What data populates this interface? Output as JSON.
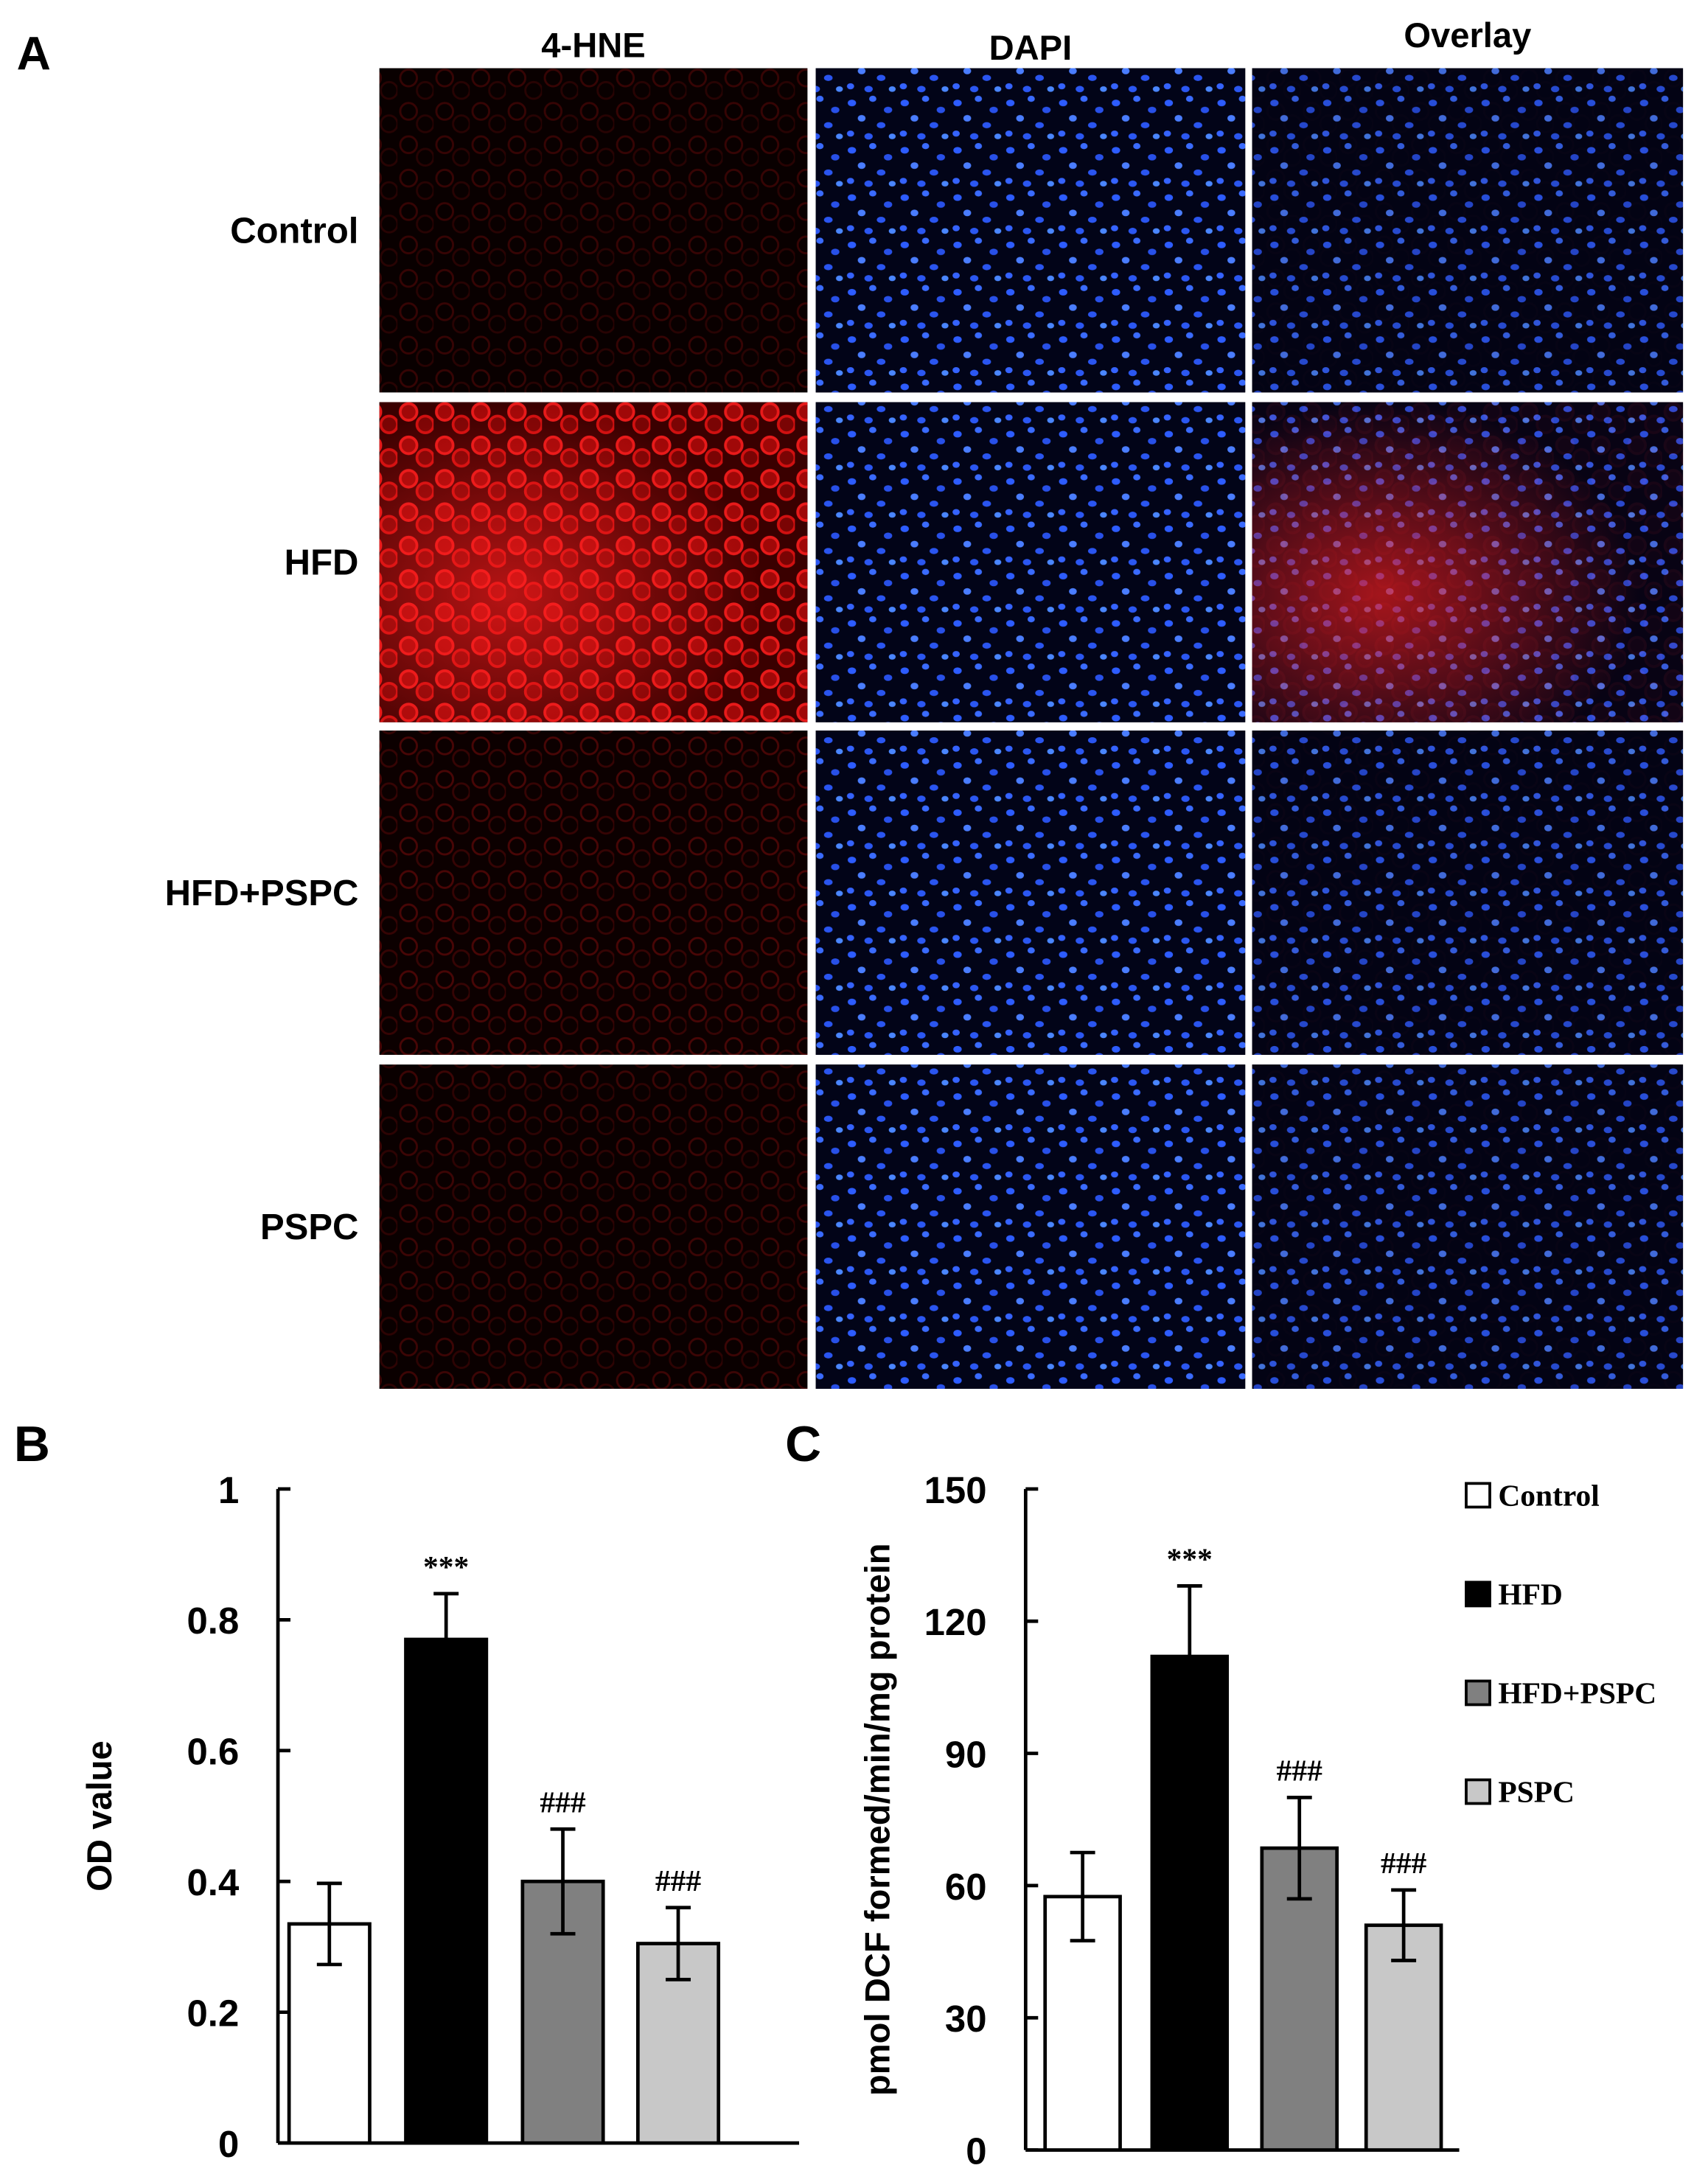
{
  "panel_a": {
    "label": "A",
    "columns": [
      "4-HNE",
      "DAPI",
      "Overlay"
    ],
    "rows": [
      "Control",
      "HFD",
      "HFD+PSPC",
      "PSPC"
    ]
  },
  "chart_data": [
    {
      "type": "bar",
      "panel_label": "B",
      "ylabel": "OD value",
      "values": [
        0.335,
        0.77,
        0.4,
        0.305
      ],
      "errors": [
        0.062,
        0.07,
        0.08,
        0.055
      ],
      "annotations": [
        null,
        "***",
        "###",
        "###"
      ],
      "colors": [
        "#ffffff",
        "#000000",
        "#808080",
        "#c8c8c8"
      ],
      "ylim": [
        0,
        1
      ],
      "yticks": [
        0,
        0.2,
        0.4,
        0.6,
        0.8,
        1
      ]
    },
    {
      "type": "bar",
      "panel_label": "C",
      "ylabel": "pmol DCF formed/min/mg protein",
      "categories": [
        "Control",
        "HFD",
        "HFD+PSPC",
        "PSPC"
      ],
      "values": [
        57.5,
        112,
        68.5,
        51
      ],
      "errors": [
        10,
        16,
        11.5,
        8
      ],
      "annotations": [
        null,
        "***",
        "###",
        "###"
      ],
      "colors": [
        "#ffffff",
        "#000000",
        "#808080",
        "#c8c8c8"
      ],
      "ylim": [
        0,
        150
      ],
      "yticks": [
        0,
        30,
        60,
        90,
        120,
        150
      ],
      "legend": "right"
    }
  ]
}
